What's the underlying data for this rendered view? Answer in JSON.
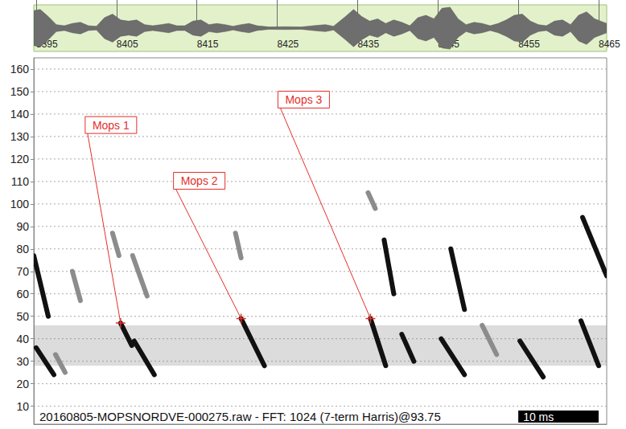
{
  "chart_data": {
    "type": "spectrogram",
    "xlim": [
      8394.7,
      8466
    ],
    "xticks": [
      8395,
      8405,
      8415,
      8425,
      8435,
      8445,
      8455,
      8465
    ],
    "ylim": [
      2,
      165
    ],
    "yticks": [
      10,
      20,
      30,
      40,
      50,
      60,
      70,
      80,
      90,
      100,
      110,
      120,
      130,
      140,
      150,
      160
    ],
    "grid": true,
    "waveform": {
      "ylim": [
        -1,
        1
      ],
      "x": [
        8394.7,
        8395.5,
        8396.5,
        8397.5,
        8398.5,
        8399.5,
        8400.5,
        8401.5,
        8402.5,
        8403.5,
        8404.5,
        8405.5,
        8406.5,
        8407.5,
        8408.5,
        8409.5,
        8410.5,
        8411.5,
        8412.5,
        8413.5,
        8414.5,
        8415.5,
        8416.5,
        8417.5,
        8418.5,
        8419.5,
        8420.5,
        8421.5,
        8422.5,
        8424,
        8426,
        8428,
        8430,
        8431,
        8432,
        8433.5,
        8434.5,
        8435.5,
        8436.5,
        8437.5,
        8438.5,
        8439.5,
        8440.5,
        8441.5,
        8442.5,
        8443.5,
        8444.5,
        8445.5,
        8446.5,
        8447.5,
        8448.5,
        8449.5,
        8450.5,
        8451.5,
        8452.5,
        8453.5,
        8454.5,
        8455.5,
        8456.5,
        8457.5,
        8458.5,
        8459.5,
        8460.5,
        8461.5,
        8462.5,
        8463.5,
        8464.5,
        8466
      ],
      "values": [
        0.75,
        0.8,
        0.5,
        0.15,
        0.1,
        0.2,
        0.25,
        0.1,
        0.08,
        0.45,
        0.6,
        0.35,
        0.3,
        0.35,
        0.15,
        0.1,
        0.15,
        0.2,
        0.1,
        0.1,
        0.3,
        0.35,
        0.15,
        0.2,
        0.15,
        0.08,
        0.15,
        0.2,
        0.1,
        0.05,
        0.06,
        0.05,
        0.12,
        0.15,
        0.08,
        0.5,
        0.8,
        0.5,
        0.3,
        0.4,
        0.2,
        0.35,
        0.25,
        0.1,
        0.45,
        0.55,
        0.4,
        0.85,
        0.9,
        0.4,
        0.15,
        0.25,
        0.2,
        0.1,
        0.2,
        0.35,
        0.55,
        0.6,
        0.3,
        0.15,
        0.1,
        0.3,
        0.35,
        0.15,
        0.55,
        0.7,
        0.4,
        0.2
      ]
    },
    "noise_band": [
      28,
      46
    ],
    "series": [
      {
        "color": "#111111",
        "calls": [
          [
            8394.7,
            77,
            8396.5,
            50
          ],
          [
            8395,
            36,
            8397.2,
            24
          ],
          [
            8405.5,
            47,
            8406.9,
            37
          ],
          [
            8407.2,
            39,
            8409.7,
            24
          ],
          [
            8420.5,
            49,
            8423.4,
            28
          ],
          [
            8436.6,
            49,
            8438.5,
            28
          ],
          [
            8438.3,
            84,
            8439.5,
            60
          ],
          [
            8440.5,
            42,
            8442,
            30
          ],
          [
            8445.4,
            40,
            8448.3,
            24
          ],
          [
            8446.6,
            80,
            8448.3,
            53
          ],
          [
            8455.2,
            39,
            8458.1,
            23
          ],
          [
            8462.8,
            48,
            8465,
            28
          ],
          [
            8463,
            94,
            8466,
            68
          ]
        ]
      },
      {
        "color": "#8c8c8c",
        "calls": [
          [
            8397.4,
            33,
            8398.6,
            25
          ],
          [
            8399.5,
            70,
            8400.5,
            57
          ],
          [
            8404.5,
            87,
            8405.3,
            77
          ],
          [
            8407,
            77,
            8408.8,
            59
          ],
          [
            8419.8,
            87,
            8420.5,
            76
          ],
          [
            8436.3,
            105,
            8437.2,
            98
          ],
          [
            8450.5,
            46,
            8452.3,
            33
          ]
        ]
      }
    ],
    "annotations": [
      {
        "text": "Mops 1",
        "x": 8405.5,
        "y": 47
      },
      {
        "text": "Mops 2",
        "x": 8420.5,
        "y": 49
      },
      {
        "text": "Mops 3",
        "x": 8436.6,
        "y": 49
      }
    ],
    "footer": "20160805-MOPSNORDVE-000275.raw - FFT: 1024 (7-term Harris)@93.75",
    "scale_bar": {
      "label": "10 ms",
      "length": 10
    }
  }
}
